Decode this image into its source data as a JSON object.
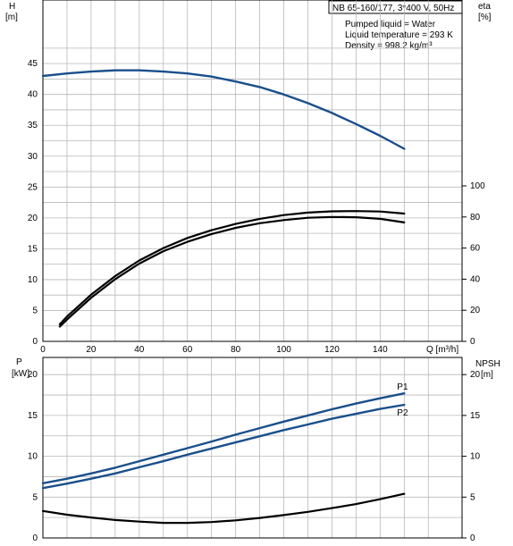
{
  "header": {
    "title": "NB 65-160/177, 3*400 V, 50Hz",
    "info_lines": [
      "Pumped liquid = Water",
      "Liquid temperature = 293 K",
      "Density = 998.2 kg/m³"
    ]
  },
  "chart_data": [
    {
      "type": "line",
      "xlim": [
        0,
        160
      ],
      "x_ticks": [
        "0",
        "20",
        "40",
        "60",
        "80",
        "100",
        "120",
        "140"
      ],
      "x_unit_label": "Q [m³/h]",
      "left_axis": {
        "label": "H",
        "unit": "[m]",
        "ylim": [
          0,
          50
        ],
        "ticks": [
          "0",
          "5",
          "10",
          "15",
          "20",
          "25",
          "30",
          "35",
          "40",
          "45"
        ]
      },
      "right_axis": {
        "label": "eta",
        "unit": "[%]",
        "ylim": [
          0,
          100
        ],
        "ticks": [
          "0",
          "20",
          "40",
          "60",
          "80",
          "100"
        ]
      },
      "grid": true,
      "series": [
        {
          "axis": "left",
          "color": "#1a4f8b",
          "points": [
            [
              0,
              43.0
            ],
            [
              10,
              43.4
            ],
            [
              20,
              43.7
            ],
            [
              30,
              43.9
            ],
            [
              40,
              43.9
            ],
            [
              50,
              43.7
            ],
            [
              60,
              43.4
            ],
            [
              70,
              42.9
            ],
            [
              80,
              42.1
            ],
            [
              90,
              41.2
            ],
            [
              100,
              40.0
            ],
            [
              110,
              38.6
            ],
            [
              120,
              37.0
            ],
            [
              130,
              35.2
            ],
            [
              140,
              33.3
            ],
            [
              150,
              31.2
            ]
          ]
        },
        {
          "axis": "right",
          "color": "#000000",
          "points": [
            [
              7,
              9.5
            ],
            [
              10,
              14
            ],
            [
              20,
              28
            ],
            [
              30,
              40
            ],
            [
              40,
              50
            ],
            [
              50,
              58
            ],
            [
              60,
              64
            ],
            [
              70,
              69
            ],
            [
              80,
              73
            ],
            [
              90,
              76
            ],
            [
              100,
              78
            ],
            [
              110,
              79.5
            ],
            [
              120,
              80
            ],
            [
              130,
              79.8
            ],
            [
              140,
              78.8
            ],
            [
              150,
              76.5
            ]
          ]
        },
        {
          "axis": "right",
          "color": "#000000",
          "points": [
            [
              7,
              11
            ],
            [
              10,
              16
            ],
            [
              20,
              30
            ],
            [
              30,
              42
            ],
            [
              40,
              52
            ],
            [
              50,
              60
            ],
            [
              60,
              66.5
            ],
            [
              70,
              71.5
            ],
            [
              80,
              75.5
            ],
            [
              90,
              78.8
            ],
            [
              100,
              81.2
            ],
            [
              110,
              82.8
            ],
            [
              120,
              83.6
            ],
            [
              130,
              83.8
            ],
            [
              140,
              83.5
            ],
            [
              150,
              82.2
            ]
          ]
        }
      ]
    },
    {
      "type": "line",
      "xlim": [
        0,
        160
      ],
      "left_axis": {
        "label": "P",
        "unit": "[kW]",
        "ylim": [
          0,
          20
        ],
        "ticks": [
          "0",
          "5",
          "10",
          "15",
          "20"
        ]
      },
      "right_axis": {
        "label": "NPSH",
        "unit": "[m]",
        "ylim": [
          0,
          20
        ],
        "ticks": [
          "0",
          "5",
          "10",
          "15",
          "20"
        ]
      },
      "grid": true,
      "series": [
        {
          "name": "P1",
          "axis": "left",
          "color": "#1a4f8b",
          "points": [
            [
              0,
              6.7
            ],
            [
              10,
              7.25
            ],
            [
              20,
              7.9
            ],
            [
              30,
              8.6
            ],
            [
              40,
              9.4
            ],
            [
              50,
              10.2
            ],
            [
              60,
              11.0
            ],
            [
              70,
              11.8
            ],
            [
              80,
              12.65
            ],
            [
              90,
              13.45
            ],
            [
              100,
              14.25
            ],
            [
              110,
              15.0
            ],
            [
              120,
              15.75
            ],
            [
              130,
              16.45
            ],
            [
              140,
              17.1
            ],
            [
              150,
              17.7
            ]
          ]
        },
        {
          "name": "P2",
          "axis": "left",
          "color": "#1a4f8b",
          "points": [
            [
              0,
              6.1
            ],
            [
              10,
              6.65
            ],
            [
              20,
              7.25
            ],
            [
              30,
              7.9
            ],
            [
              40,
              8.65
            ],
            [
              50,
              9.4
            ],
            [
              60,
              10.2
            ],
            [
              70,
              10.95
            ],
            [
              80,
              11.7
            ],
            [
              90,
              12.45
            ],
            [
              100,
              13.2
            ],
            [
              110,
              13.9
            ],
            [
              120,
              14.6
            ],
            [
              130,
              15.2
            ],
            [
              140,
              15.8
            ],
            [
              150,
              16.3
            ]
          ]
        },
        {
          "axis": "right",
          "color": "#000000",
          "points": [
            [
              0,
              3.3
            ],
            [
              10,
              2.85
            ],
            [
              20,
              2.5
            ],
            [
              30,
              2.2
            ],
            [
              40,
              2.0
            ],
            [
              50,
              1.85
            ],
            [
              60,
              1.85
            ],
            [
              70,
              1.95
            ],
            [
              80,
              2.15
            ],
            [
              90,
              2.45
            ],
            [
              100,
              2.8
            ],
            [
              110,
              3.2
            ],
            [
              120,
              3.65
            ],
            [
              130,
              4.15
            ],
            [
              140,
              4.75
            ],
            [
              150,
              5.4
            ]
          ]
        }
      ]
    }
  ]
}
